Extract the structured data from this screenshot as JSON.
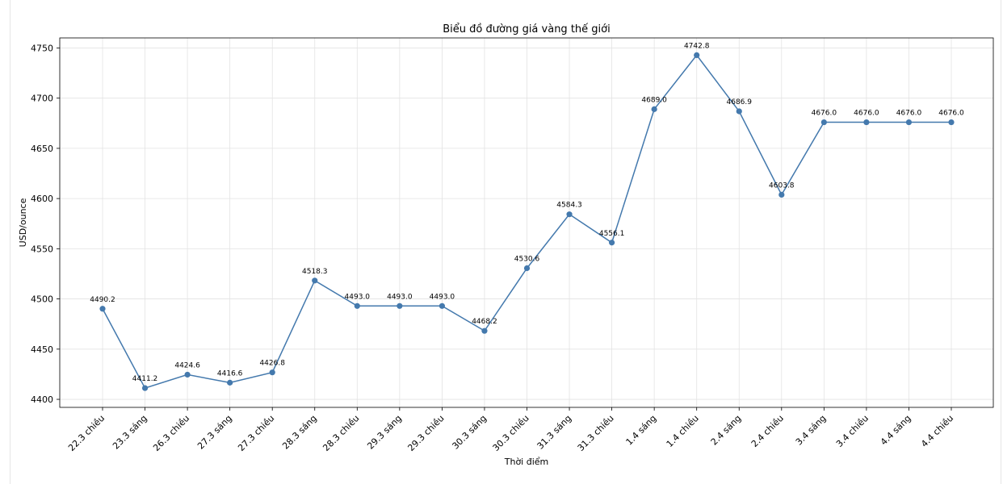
{
  "chart_data": {
    "type": "line",
    "title": "Biểu đồ đường giá vàng thế giới",
    "xlabel": "Thời điểm",
    "ylabel": "USD/ounce",
    "ylim": [
      4392,
      4760
    ],
    "yticks": [
      4400,
      4450,
      4500,
      4550,
      4600,
      4650,
      4700,
      4750
    ],
    "grid": true,
    "color": "#4479ad",
    "categories": [
      "22.3 chiều",
      "23.3 sáng",
      "26.3 chiều",
      "27.3 sáng",
      "27.3 chiều",
      "28.3 sáng",
      "28.3 chiều",
      "29.3 sáng",
      "29.3 chiều",
      "30.3 sáng",
      "30.3 chiều",
      "31.3 sáng",
      "31.3 chiều",
      "1.4 sáng",
      "1.4 chiều",
      "2.4 sáng",
      "2.4 chiều",
      "3.4 sáng",
      "3.4 chiều",
      "4.4 sáng",
      "4.4 chiều"
    ],
    "values": [
      4490.2,
      4411.2,
      4424.6,
      4416.6,
      4426.8,
      4518.3,
      4493.0,
      4493.0,
      4493.0,
      4468.2,
      4530.6,
      4584.3,
      4556.1,
      4689.0,
      4742.8,
      4686.9,
      4603.8,
      4676.0,
      4676.0,
      4676.0,
      4676.0
    ]
  }
}
